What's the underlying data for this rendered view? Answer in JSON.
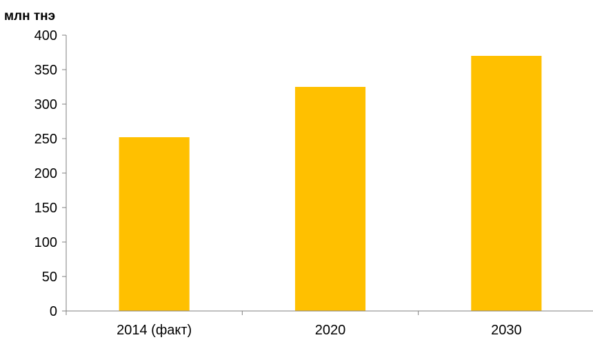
{
  "chart_data": {
    "type": "bar",
    "unit_label": "млн тнэ",
    "categories": [
      "2014 (факт)",
      "2020",
      "2030"
    ],
    "values": [
      252,
      325,
      370
    ],
    "ylim": [
      0,
      400
    ],
    "yticks": [
      0,
      50,
      100,
      150,
      200,
      250,
      300,
      350,
      400
    ],
    "grid": false,
    "legend": "none",
    "bar_color": "#FFC000",
    "axis_color": "#7F7F7F"
  }
}
